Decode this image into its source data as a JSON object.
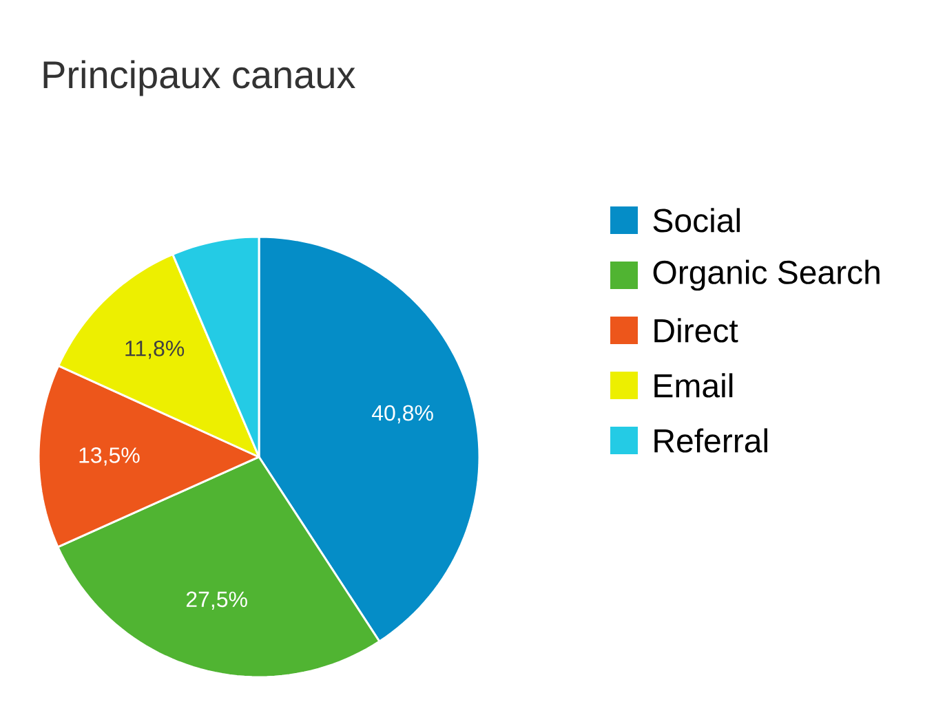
{
  "chart_data": {
    "type": "pie",
    "title": "Principaux canaux",
    "categories": [
      "Social",
      "Organic Search",
      "Direct",
      "Email",
      "Referral"
    ],
    "values": [
      40.8,
      27.5,
      13.5,
      11.8,
      6.4
    ],
    "value_labels": [
      "40,8%",
      "27,5%",
      "13,5%",
      "11,8%",
      null
    ],
    "colors": [
      "#058dc7",
      "#50b432",
      "#ed561b",
      "#edef00",
      "#24cbe5"
    ],
    "legend": "right"
  }
}
